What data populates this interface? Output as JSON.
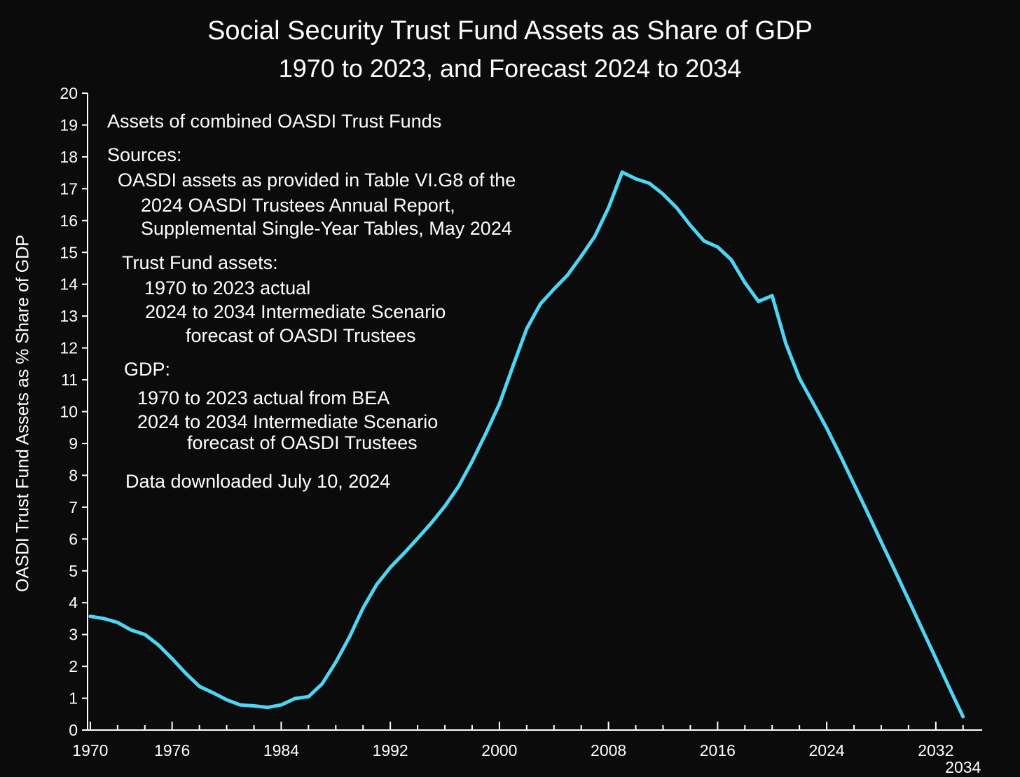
{
  "chart_data": {
    "type": "line",
    "title": "Social Security Trust Fund Assets as Share of GDP",
    "subtitle": "1970 to 2023, and Forecast 2024 to 2034",
    "xlabel": "",
    "ylabel": "OASDI Trust Fund Assets as % Share of GDP",
    "xlim": [
      1969.8,
      2035.4
    ],
    "ylim": [
      0,
      20
    ],
    "x_ticks_major": [
      1970,
      1976,
      1984,
      1992,
      2000,
      2008,
      2016,
      2024,
      2032
    ],
    "x_tick_extra": 2034,
    "y_ticks": [
      0,
      1,
      2,
      3,
      4,
      5,
      6,
      7,
      8,
      9,
      10,
      11,
      12,
      13,
      14,
      15,
      16,
      17,
      18,
      19,
      20
    ],
    "grid": false,
    "line_color": "#4fd4f2",
    "series": [
      {
        "name": "OASDI Trust Fund Assets (% of GDP)",
        "x": [
          1970,
          1971,
          1972,
          1973,
          1974,
          1975,
          1976,
          1977,
          1978,
          1979,
          1980,
          1981,
          1982,
          1983,
          1984,
          1985,
          1986,
          1987,
          1988,
          1989,
          1990,
          1991,
          1992,
          1993,
          1994,
          1995,
          1996,
          1997,
          1998,
          1999,
          2000,
          2001,
          2002,
          2003,
          2004,
          2005,
          2006,
          2007,
          2008,
          2009,
          2010,
          2011,
          2012,
          2013,
          2014,
          2015,
          2016,
          2017,
          2018,
          2019,
          2020,
          2021,
          2022,
          2023,
          2024,
          2025,
          2026,
          2027,
          2028,
          2029,
          2030,
          2031,
          2032,
          2033,
          2034
        ],
        "values": [
          3.57,
          3.5,
          3.38,
          3.14,
          3.0,
          2.67,
          2.24,
          1.78,
          1.37,
          1.17,
          0.95,
          0.79,
          0.76,
          0.71,
          0.79,
          0.99,
          1.05,
          1.45,
          2.13,
          2.92,
          3.83,
          4.57,
          5.11,
          5.55,
          6.02,
          6.5,
          7.03,
          7.65,
          8.44,
          9.31,
          10.24,
          11.44,
          12.6,
          13.38,
          13.85,
          14.29,
          14.88,
          15.51,
          16.4,
          17.52,
          17.31,
          17.17,
          16.83,
          16.4,
          15.85,
          15.36,
          15.17,
          14.77,
          14.05,
          13.46,
          13.64,
          12.14,
          11.05,
          10.27,
          9.48,
          8.62,
          7.72,
          6.82,
          5.91,
          5.01,
          4.09,
          3.17,
          2.25,
          1.32,
          0.42
        ]
      }
    ],
    "annotations": [
      {
        "text": "Assets of combined OASDI Trust Funds"
      },
      {
        "text": "Sources:"
      },
      {
        "text": "OASDI assets as provided in Table VI.G8 of the"
      },
      {
        "text": "2024 OASDI Trustees Annual Report,"
      },
      {
        "text": "Supplemental Single-Year Tables, May 2024"
      },
      {
        "text": "Trust Fund assets:"
      },
      {
        "text": "1970 to 2023 actual"
      },
      {
        "text": "2024 to 2034 Intermediate Scenario"
      },
      {
        "text": "forecast of OASDI Trustees"
      },
      {
        "text": "GDP:"
      },
      {
        "text": "1970 to 2023 actual from BEA"
      },
      {
        "text": "2024 to 2034 Intermediate Scenario"
      },
      {
        "text": "forecast of OASDI Trustees"
      },
      {
        "text": "Data downloaded July 10, 2024"
      }
    ]
  }
}
